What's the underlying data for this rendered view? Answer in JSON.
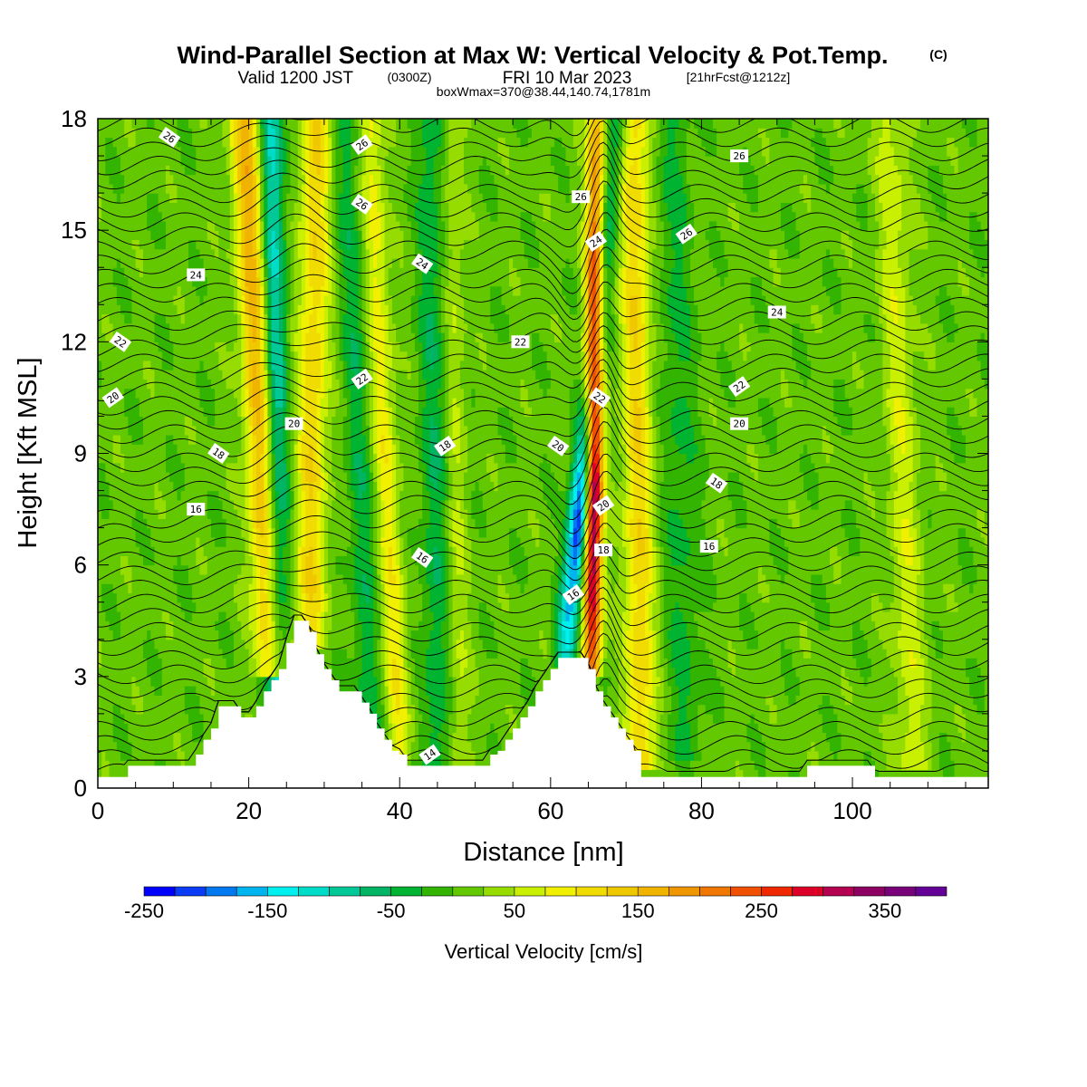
{
  "title": {
    "main": "Wind-Parallel Section at Max W: Vertical Velocity & Pot.Temp.",
    "copyright": "(C)",
    "valid_prefix": "Valid 1200 JST",
    "valid_z": "(0300Z)",
    "valid_date": "FRI 10 Mar 2023",
    "valid_fcst": "[21hrFcst@1212z]",
    "box": "boxWmax=370@38.44,140.74,1781m"
  },
  "chart_data": {
    "type": "heatmap",
    "xlabel": "Distance [nm]",
    "ylabel": "Height [Kft MSL]",
    "xlim": [
      0,
      118
    ],
    "ylim": [
      0,
      18
    ],
    "x_ticks": [
      0,
      20,
      40,
      60,
      80,
      100
    ],
    "y_ticks": [
      0,
      3,
      6,
      9,
      12,
      15,
      18
    ],
    "colorbar": {
      "title": "Vertical Velocity [cm/s]",
      "min": -250,
      "max": 400,
      "step": 25,
      "tick_values": [
        -250,
        -150,
        -50,
        50,
        150,
        250,
        350
      ],
      "tick_labels": [
        "-250",
        "-150",
        "-50",
        "50",
        "150",
        "250",
        "350"
      ],
      "colors": [
        "#0000ff",
        "#0a3cf5",
        "#0078f0",
        "#00b4f0",
        "#00f0f0",
        "#00dcc8",
        "#00c896",
        "#00b464",
        "#00b432",
        "#32b400",
        "#64c800",
        "#96dc00",
        "#c8f000",
        "#f0f000",
        "#f0dc00",
        "#f0c800",
        "#f0b400",
        "#f09600",
        "#f07800",
        "#f05000",
        "#f02800",
        "#dc0028",
        "#b40050",
        "#8c0064",
        "#780078",
        "#640096"
      ]
    },
    "terrain": {
      "x": [
        0,
        3,
        4,
        12,
        13,
        14,
        15,
        16,
        17,
        18,
        19,
        20,
        21,
        22,
        23,
        24,
        25,
        26,
        27,
        28,
        29,
        30,
        31,
        32,
        33,
        34,
        35,
        36,
        37,
        38,
        39,
        40,
        41,
        42,
        43,
        44,
        45,
        46,
        47,
        48,
        49,
        50,
        51,
        52,
        53,
        54,
        55,
        56,
        57,
        58,
        59,
        60,
        61,
        62,
        63,
        64,
        65,
        66,
        67,
        68,
        69,
        70,
        71,
        72,
        93,
        94,
        102,
        103,
        118
      ],
      "y": [
        0.3,
        0.3,
        0.6,
        0.6,
        0.9,
        1.3,
        1.6,
        2.2,
        2.2,
        2.2,
        1.9,
        1.9,
        2.2,
        2.6,
        2.9,
        3.2,
        3.9,
        4.5,
        4.5,
        4.2,
        3.6,
        3.2,
        2.9,
        2.6,
        2.6,
        2.6,
        2.3,
        2.0,
        1.6,
        1.3,
        1.0,
        0.9,
        0.6,
        0.6,
        0.6,
        0.6,
        0.6,
        0.6,
        0.6,
        0.6,
        0.6,
        0.6,
        0.6,
        0.9,
        1.0,
        1.3,
        1.6,
        1.9,
        2.2,
        2.6,
        2.9,
        3.2,
        3.5,
        3.5,
        3.5,
        3.5,
        3.2,
        2.6,
        2.2,
        1.9,
        1.6,
        1.3,
        1.0,
        0.3,
        0.3,
        0.6,
        0.6,
        0.3,
        0.3
      ]
    },
    "w_features": [
      {
        "kind": "up",
        "x_bottom": 23.0,
        "x_top": 19.5,
        "y_bottom": 3.2,
        "amp": 150,
        "w": 2.0
      },
      {
        "kind": "down",
        "x_bottom": 24.0,
        "x_top": 23.0,
        "y_bottom": 2.0,
        "amp": -120,
        "w": 1.6
      },
      {
        "kind": "up",
        "x_bottom": 28.0,
        "x_top": 29.0,
        "y_bottom": 4.0,
        "amp": 110,
        "w": 2.0
      },
      {
        "kind": "down",
        "x_bottom": 36.0,
        "x_top": 33.0,
        "y_bottom": 1.0,
        "amp": -50,
        "w": 1.8
      },
      {
        "kind": "up",
        "x_bottom": 40.0,
        "x_top": 36.0,
        "y_bottom": 1.0,
        "amp": 80,
        "w": 1.6
      },
      {
        "kind": "down",
        "x_bottom": 45.0,
        "x_top": 44.0,
        "y_bottom": 0.8,
        "amp": -55,
        "w": 1.8
      },
      {
        "kind": "up",
        "x_bottom": 48.0,
        "x_top": 47.0,
        "y_bottom": 0.8,
        "amp": 40,
        "w": 1.4
      },
      {
        "kind": "down",
        "x_bottom": 62.0,
        "x_top": 69.0,
        "y_bottom": 3.6,
        "amp": -240,
        "w": 1.4
      },
      {
        "kind": "up",
        "x_bottom": 65.5,
        "x_top": 66.0,
        "y_bottom": 3.4,
        "amp": 370,
        "w": 1.2
      },
      {
        "kind": "up",
        "x_bottom": 72.0,
        "x_top": 71.0,
        "y_bottom": 0.8,
        "amp": 110,
        "w": 2.0
      },
      {
        "kind": "down",
        "x_bottom": 78.0,
        "x_top": 76.0,
        "y_bottom": 1.0,
        "amp": -40,
        "w": 2.4
      },
      {
        "kind": "up",
        "x_bottom": 108.0,
        "x_top": 105.0,
        "y_bottom": 0.8,
        "amp": 55,
        "w": 2.2
      }
    ],
    "theta_contours": [
      {
        "label": "14",
        "label_at": [
          44.0,
          0.9
        ],
        "base_y": 0.5
      },
      {
        "label": "16",
        "label_at": [
          13.0,
          7.5
        ],
        "base_y": 6.6
      },
      {
        "label": "16",
        "label_at": [
          43.0,
          6.2
        ],
        "base_y": 6.6
      },
      {
        "label": "16",
        "label_at": [
          63.0,
          5.2
        ],
        "base_y": 6.6
      },
      {
        "label": "16",
        "label_at": [
          81.0,
          6.5
        ],
        "base_y": 6.6
      },
      {
        "label": "18",
        "label_at": [
          16.0,
          9.0
        ],
        "base_y": 8.2
      },
      {
        "label": "18",
        "label_at": [
          46.0,
          9.2
        ],
        "base_y": 8.2
      },
      {
        "label": "18",
        "label_at": [
          67.0,
          6.4
        ],
        "base_y": 8.2
      },
      {
        "label": "18",
        "label_at": [
          82.0,
          8.2
        ],
        "base_y": 8.2
      },
      {
        "label": "20",
        "label_at": [
          2.0,
          10.5
        ],
        "base_y": 10.5
      },
      {
        "label": "20",
        "label_at": [
          26.0,
          9.8
        ],
        "base_y": 10.5
      },
      {
        "label": "20",
        "label_at": [
          61.0,
          9.2
        ],
        "base_y": 10.5
      },
      {
        "label": "20",
        "label_at": [
          67.0,
          7.6
        ],
        "base_y": 10.5
      },
      {
        "label": "20",
        "label_at": [
          85.0,
          9.8
        ],
        "base_y": 10.5
      },
      {
        "label": "22",
        "label_at": [
          3.0,
          12.0
        ],
        "base_y": 12.0
      },
      {
        "label": "22",
        "label_at": [
          35.0,
          11.0
        ],
        "base_y": 12.0
      },
      {
        "label": "22",
        "label_at": [
          56.0,
          12.0
        ],
        "base_y": 12.0
      },
      {
        "label": "22",
        "label_at": [
          66.5,
          10.5
        ],
        "base_y": 12.0
      },
      {
        "label": "22",
        "label_at": [
          85.0,
          10.8
        ],
        "base_y": 12.0
      },
      {
        "label": "24",
        "label_at": [
          13.0,
          13.8
        ],
        "base_y": 14.0
      },
      {
        "label": "24",
        "label_at": [
          43.0,
          14.1
        ],
        "base_y": 14.0
      },
      {
        "label": "24",
        "label_at": [
          66.0,
          14.7
        ],
        "base_y": 14.0
      },
      {
        "label": "24",
        "label_at": [
          90.0,
          12.8
        ],
        "base_y": 14.0
      },
      {
        "label": "26",
        "label_at": [
          35.0,
          15.7
        ],
        "base_y": 16.0
      },
      {
        "label": "26",
        "label_at": [
          78.0,
          14.9
        ],
        "base_y": 16.0
      },
      {
        "label": "26",
        "label_at": [
          64.0,
          15.9
        ],
        "base_y": 16.0
      },
      {
        "label": "26",
        "label_at": [
          9.5,
          17.5
        ],
        "base_y": 17.5
      },
      {
        "label": "26",
        "label_at": [
          35.0,
          17.3
        ],
        "base_y": 17.5
      },
      {
        "label": "26",
        "label_at": [
          85.0,
          17.0
        ],
        "base_y": 17.5
      }
    ]
  }
}
